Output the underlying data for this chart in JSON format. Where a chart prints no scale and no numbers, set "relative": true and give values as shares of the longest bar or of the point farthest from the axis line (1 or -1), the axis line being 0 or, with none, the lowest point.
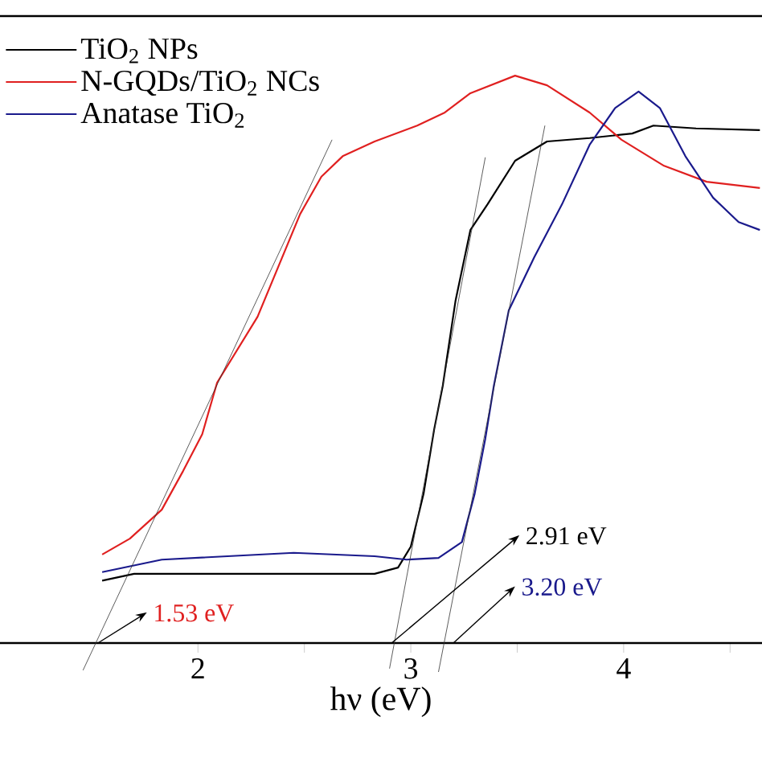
{
  "chart_data": {
    "type": "line",
    "relative": true,
    "xlabel": "hν (eV)",
    "xlim": [
      1.07,
      4.65
    ],
    "xticks": [
      2,
      {
        "value": 2.5,
        "label": null
      },
      3,
      {
        "value": 3.5,
        "label": null
      },
      4,
      {
        "value": 4.5,
        "label": null
      }
    ],
    "legend": "top left",
    "series": [
      {
        "name": "TiO$_{2}$ NPs",
        "color": "#000000",
        "x": [
          1.55,
          1.7,
          2.18,
          2.83,
          2.94,
          3.0,
          3.06,
          3.11,
          3.15,
          3.21,
          3.28,
          3.36,
          3.49,
          3.64,
          3.84,
          4.04,
          4.14,
          4.34,
          4.64
        ],
        "values": [
          0.11,
          0.122,
          0.122,
          0.122,
          0.133,
          0.17,
          0.263,
          0.377,
          0.453,
          0.603,
          0.728,
          0.773,
          0.85,
          0.884,
          0.89,
          0.898,
          0.912,
          0.907,
          0.904
        ]
      },
      {
        "name": "N-GQDs/TiO$_{2}$ NCs",
        "color": "#e02020",
        "x": [
          1.55,
          1.68,
          1.83,
          1.93,
          2.02,
          2.09,
          2.28,
          2.48,
          2.58,
          2.68,
          2.83,
          3.03,
          3.16,
          3.28,
          3.49,
          3.64,
          3.84,
          3.99,
          4.19,
          4.39,
          4.64
        ],
        "values": [
          0.156,
          0.184,
          0.235,
          0.303,
          0.368,
          0.459,
          0.575,
          0.756,
          0.822,
          0.858,
          0.884,
          0.912,
          0.935,
          0.969,
          1.0,
          0.983,
          0.935,
          0.887,
          0.841,
          0.813,
          0.802
        ]
      },
      {
        "name": "Anatase TiO$_{2}$",
        "color": "#1a1a8c",
        "x": [
          1.55,
          1.83,
          2.45,
          2.83,
          2.98,
          3.13,
          3.24,
          3.3,
          3.35,
          3.39,
          3.46,
          3.58,
          3.71,
          3.84,
          3.96,
          4.07,
          4.17,
          4.29,
          4.42,
          4.54,
          4.64
        ],
        "values": [
          0.125,
          0.147,
          0.159,
          0.153,
          0.147,
          0.15,
          0.178,
          0.263,
          0.36,
          0.453,
          0.586,
          0.68,
          0.773,
          0.878,
          0.943,
          0.972,
          0.943,
          0.858,
          0.785,
          0.742,
          0.728
        ]
      },
      {
        "type": "line",
        "color": "#333333",
        "x": [
          1.46,
          2.63
        ],
        "values": [
          -0.048,
          0.887
        ]
      },
      {
        "type": "line",
        "color": "#333333",
        "x": [
          2.9,
          3.35
        ],
        "values": [
          -0.045,
          0.856
        ]
      },
      {
        "type": "line",
        "color": "#333333",
        "x": [
          3.13,
          3.63
        ],
        "values": [
          -0.051,
          0.912
        ]
      }
    ],
    "annotations": [
      "1.53 eV",
      "2.91 eV",
      "3.20 eV"
    ]
  }
}
